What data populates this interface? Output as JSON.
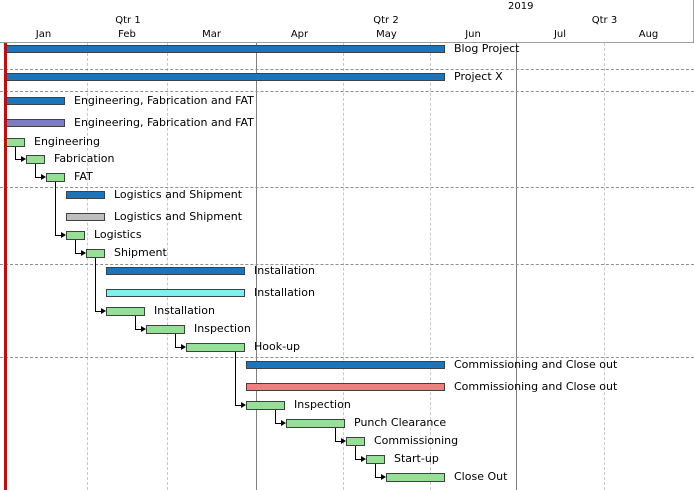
{
  "timescale": {
    "year": "2019",
    "quarters": [
      "Qtr 1",
      "Qtr 2",
      "Qtr 3"
    ],
    "months": [
      "Jan",
      "Feb",
      "Mar",
      "Apr",
      "May",
      "Jun",
      "Jul",
      "Aug"
    ]
  },
  "colors": {
    "project_summary": "#1a75bc",
    "baseline_purple": "#7d7dc0",
    "baseline_gray": "#bebebe",
    "baseline_cyan": "#7ff0f0",
    "baseline_salmon": "#f07f7f",
    "task": "#96e096",
    "today_line": "#e00000"
  },
  "rows": [
    {
      "label": "Blog Project"
    },
    {
      "label": "Project X"
    },
    {
      "label": "Engineering, Fabrication and FAT"
    },
    {
      "label": "Engineering, Fabrication and FAT"
    },
    {
      "label": "Engineering"
    },
    {
      "label": "Fabrication"
    },
    {
      "label": "FAT"
    },
    {
      "label": "Logistics and Shipment"
    },
    {
      "label": "Logistics and Shipment"
    },
    {
      "label": "Logistics"
    },
    {
      "label": "Shipment"
    },
    {
      "label": "Installation"
    },
    {
      "label": "Installation"
    },
    {
      "label": "Installation"
    },
    {
      "label": "Inspection"
    },
    {
      "label": "Hook-up"
    },
    {
      "label": "Commissioning and Close out"
    },
    {
      "label": "Commissioning and Close out"
    },
    {
      "label": "Inspection"
    },
    {
      "label": "Punch Clearance"
    },
    {
      "label": "Commissioning"
    },
    {
      "label": "Start-up"
    },
    {
      "label": "Close Out"
    }
  ]
}
